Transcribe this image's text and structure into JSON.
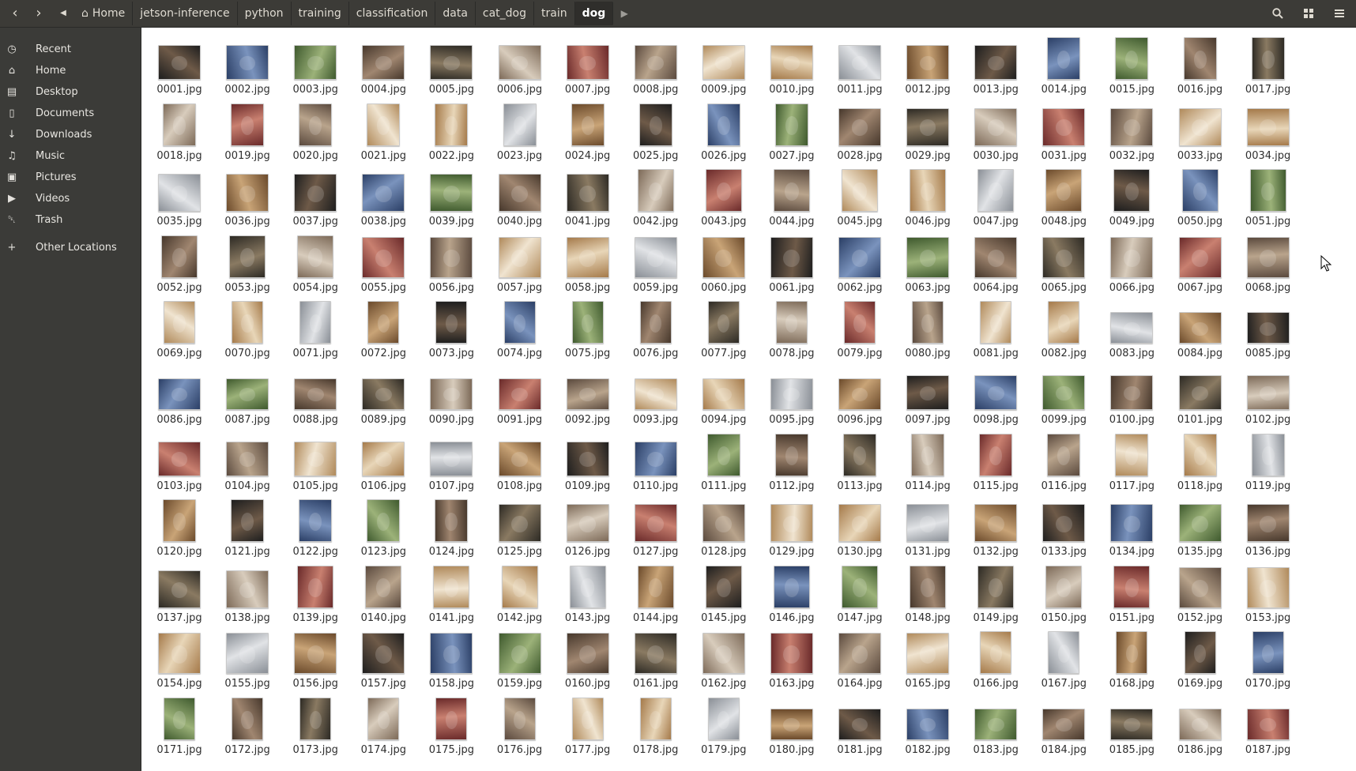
{
  "header": {
    "back_icon": "chevron-left-icon",
    "forward_icon": "chevron-right-icon",
    "crumb_left_icon": "triangle-left-icon",
    "crumb_right_icon": "triangle-right-icon",
    "home_icon": "home-icon",
    "breadcrumbs": [
      "Home",
      "jetson-inference",
      "python",
      "training",
      "classification",
      "data",
      "cat_dog",
      "train",
      "dog"
    ],
    "active_crumb": "dog",
    "search_icon": "search-icon",
    "view_icon": "grid-view-icon",
    "menu_icon": "hamburger-menu-icon"
  },
  "sidebar": {
    "items": [
      {
        "label": "Recent",
        "icon": "clock-icon"
      },
      {
        "label": "Home",
        "icon": "home-icon"
      },
      {
        "label": "Desktop",
        "icon": "folder-icon"
      },
      {
        "label": "Documents",
        "icon": "document-icon"
      },
      {
        "label": "Downloads",
        "icon": "download-icon"
      },
      {
        "label": "Music",
        "icon": "music-icon"
      },
      {
        "label": "Pictures",
        "icon": "camera-icon"
      },
      {
        "label": "Videos",
        "icon": "video-icon"
      },
      {
        "label": "Trash",
        "icon": "trash-icon"
      },
      {
        "label": "Other Locations",
        "icon": "plus-icon"
      }
    ]
  },
  "files": {
    "extension": ".jpg",
    "first": 1,
    "last": 187,
    "columns": 17
  },
  "colors": {
    "header_bg": "#3c3b37",
    "sidebar_bg": "#3b3b38",
    "content_bg": "#ffffff"
  }
}
